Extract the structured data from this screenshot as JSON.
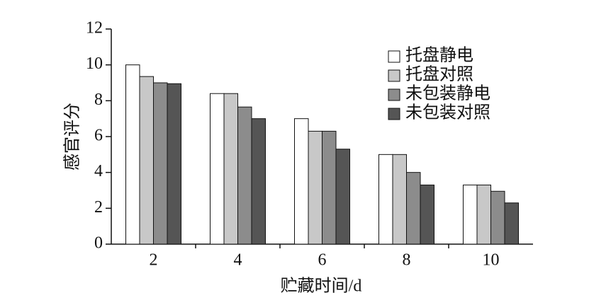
{
  "chart_data": {
    "type": "bar",
    "y_label": "感官评分",
    "x_label": "贮藏时间/d",
    "categories": [
      "2",
      "4",
      "6",
      "8",
      "10"
    ],
    "series": [
      {
        "name": "托盘静电",
        "color": "#ffffff",
        "values": [
          10.0,
          8.4,
          7.0,
          5.0,
          3.3
        ]
      },
      {
        "name": "托盘对照",
        "color": "#c8c8c8",
        "values": [
          9.35,
          8.4,
          6.3,
          5.0,
          3.3
        ]
      },
      {
        "name": "未包装静电",
        "color": "#8c8c8c",
        "values": [
          9.0,
          7.65,
          6.3,
          4.0,
          2.95
        ]
      },
      {
        "name": "未包装对照",
        "color": "#555555",
        "values": [
          8.95,
          7.0,
          5.3,
          3.3,
          2.3
        ]
      }
    ],
    "ylim": [
      0,
      12
    ],
    "yticks": [
      0,
      2,
      4,
      6,
      8,
      10,
      12
    ],
    "legend": "upper right"
  }
}
